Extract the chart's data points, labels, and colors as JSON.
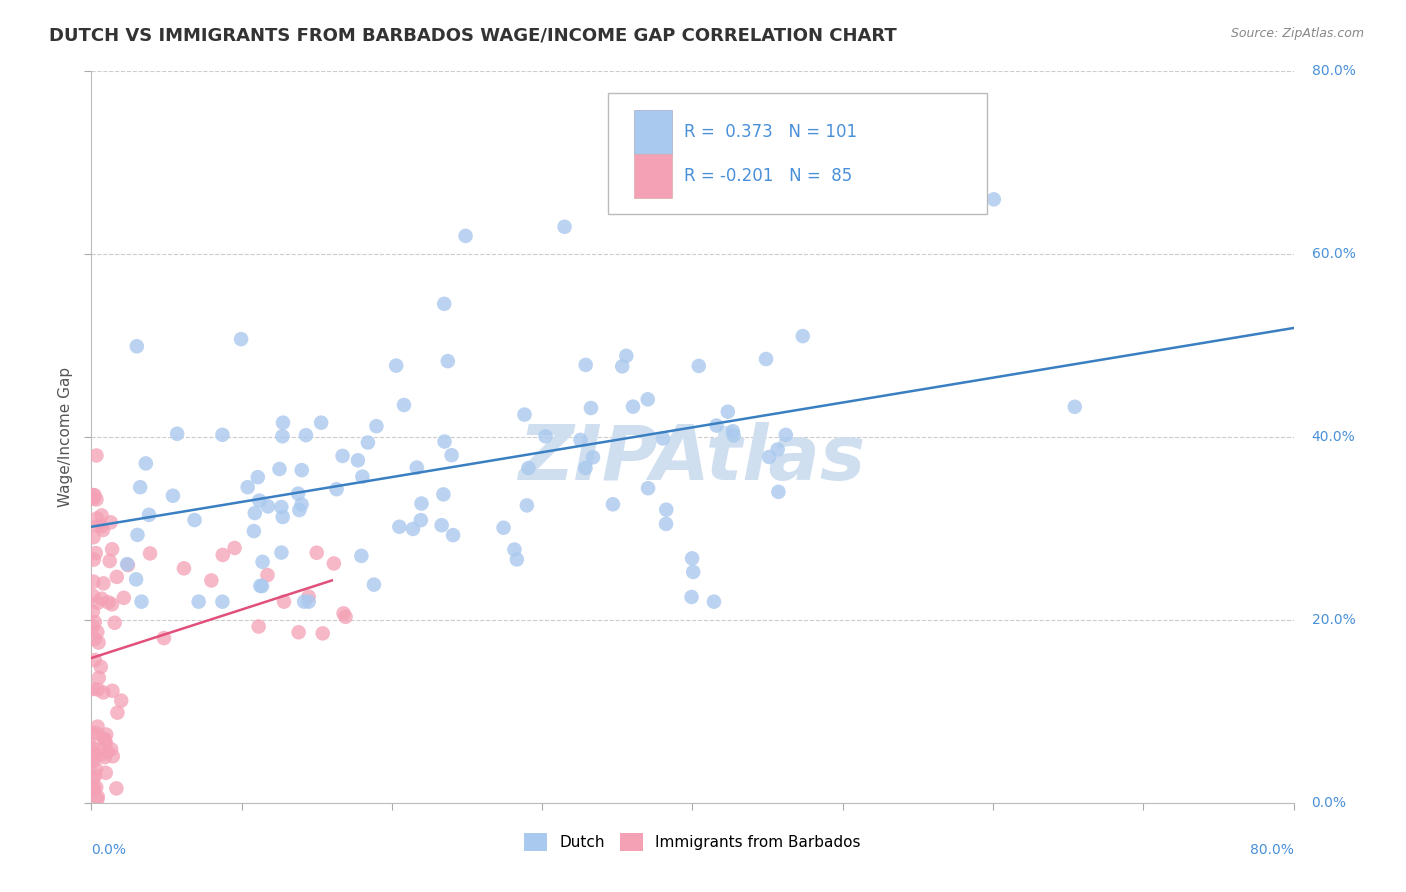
{
  "title": "DUTCH VS IMMIGRANTS FROM BARBADOS WAGE/INCOME GAP CORRELATION CHART",
  "source": "Source: ZipAtlas.com",
  "ylabel": "Wage/Income Gap",
  "yaxis_labels": [
    "0.0%",
    "20.0%",
    "40.0%",
    "60.0%",
    "80.0%"
  ],
  "legend": {
    "dutch_R": "0.373",
    "dutch_N": "101",
    "barbados_R": "-0.201",
    "barbados_N": "85"
  },
  "dutch_color": "#aac9ee",
  "barbados_color": "#f4a0b5",
  "dutch_line_color": "#3a7fc1",
  "barbados_line_color": "#e0507a",
  "watermark": "ZIPAtlas",
  "watermark_color": "#d0dff0",
  "background": "#ffffff",
  "grid_color": "#cccccc",
  "xlim": [
    0.0,
    0.8
  ],
  "ylim": [
    0.0,
    0.8
  ],
  "title_fontsize": 13,
  "source_fontsize": 9,
  "legend_fontsize": 12,
  "axis_label_fontsize": 10,
  "ylabel_fontsize": 11
}
